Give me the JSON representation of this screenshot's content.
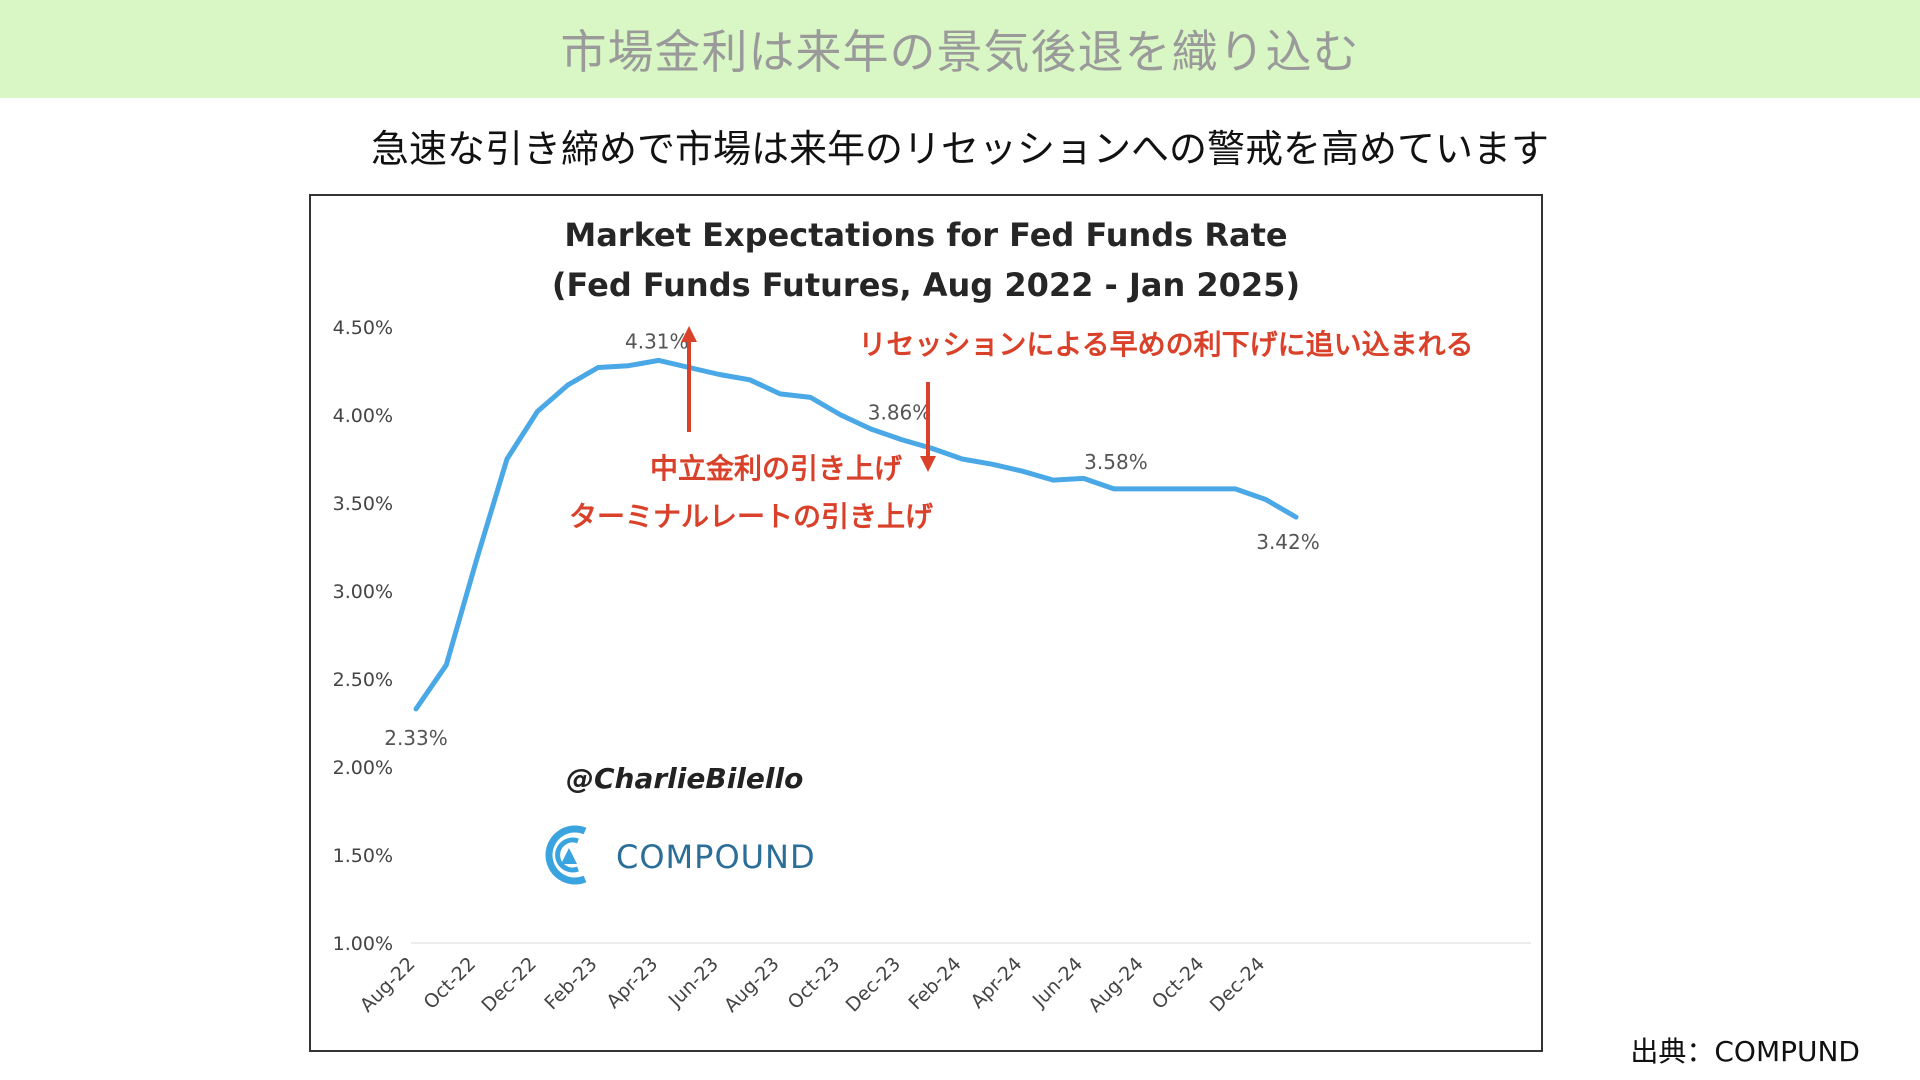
{
  "header": {
    "title": "市場金利は来年の景気後退を織り込む"
  },
  "subtitle": "急速な引き締めで市場は来年のリセッションへの警戒を高めています",
  "source": "出典：COMPUND",
  "chart_data": {
    "type": "line",
    "title": "Market Expectations for Fed Funds Rate",
    "subtitle": "(Fed Funds Futures, Aug 2022 - Jan 2025)",
    "x": [
      "Aug-22",
      "Sep-22",
      "Oct-22",
      "Nov-22",
      "Dec-22",
      "Jan-23",
      "Feb-23",
      "Mar-23",
      "Apr-23",
      "May-23",
      "Jun-23",
      "Jul-23",
      "Aug-23",
      "Sep-23",
      "Oct-23",
      "Nov-23",
      "Dec-23",
      "Jan-24",
      "Feb-24",
      "Mar-24",
      "Apr-24",
      "May-24",
      "Jun-24",
      "Jul-24",
      "Aug-24",
      "Sep-24",
      "Oct-24",
      "Nov-24",
      "Dec-24",
      "Jan-25"
    ],
    "xticks": [
      "Aug-22",
      "Oct-22",
      "Dec-22",
      "Feb-23",
      "Apr-23",
      "Jun-23",
      "Aug-23",
      "Oct-23",
      "Dec-23",
      "Feb-24",
      "Apr-24",
      "Jun-24",
      "Aug-24",
      "Oct-24",
      "Dec-24"
    ],
    "series": [
      {
        "values": [
          2.33,
          2.58,
          3.18,
          3.75,
          4.02,
          4.17,
          4.27,
          4.28,
          4.31,
          4.27,
          4.23,
          4.2,
          4.12,
          4.1,
          4.0,
          3.92,
          3.86,
          3.81,
          3.75,
          3.72,
          3.68,
          3.63,
          3.64,
          3.58,
          3.58,
          3.58,
          3.58,
          3.58,
          3.52,
          3.42
        ]
      }
    ],
    "yticks": [
      "4.50%",
      "4.00%",
      "3.50%",
      "3.00%",
      "2.50%",
      "2.00%",
      "1.50%",
      "1.00%"
    ],
    "ylim": [
      1.0,
      4.5
    ],
    "data_labels": [
      {
        "x": "Aug-22",
        "text": "2.33%"
      },
      {
        "x": "Apr-23",
        "text": "4.31%"
      },
      {
        "x": "Dec-23",
        "text": "3.86%"
      },
      {
        "x": "Jul-24",
        "text": "3.58%"
      },
      {
        "x": "Jan-25",
        "text": "3.42%"
      }
    ],
    "annotations": {
      "rise_line1": "中立金利の引き上げ",
      "rise_line2": "ターミナルレートの引き上げ",
      "fall": "リセッションによる早めの利下げに追い込まれる"
    },
    "watermark": "@CharlieBilello",
    "logo": "COMPOUND",
    "colors": {
      "line": "#4aa8e6",
      "annotation": "#d9412a",
      "logo": "#2b6f99"
    }
  }
}
